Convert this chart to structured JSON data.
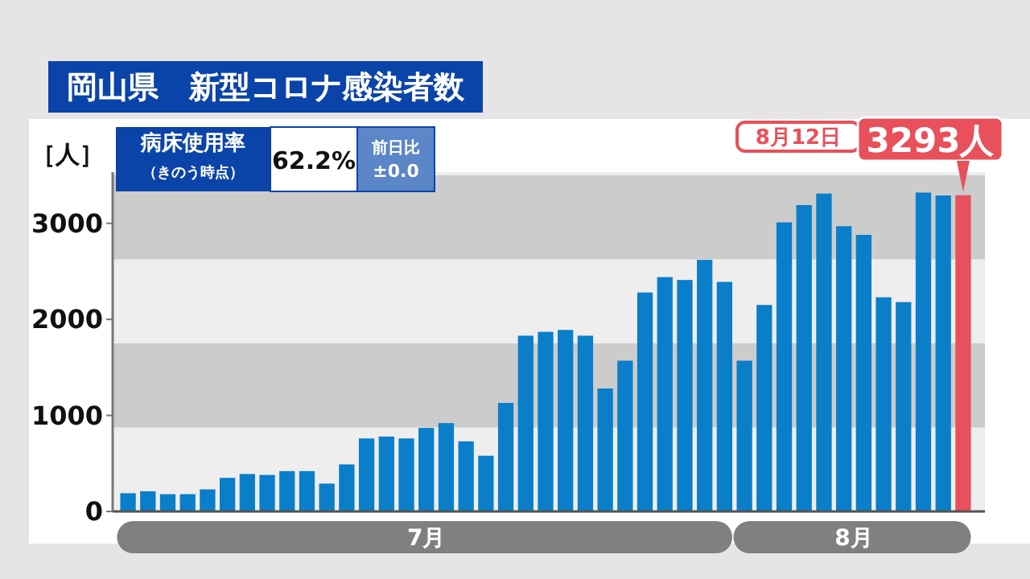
{
  "chart_data": {
    "type": "bar",
    "title": "岡山県　新型コロナ感染者数",
    "ylabel": "［人］",
    "categories": [
      null,
      null,
      null,
      null,
      null,
      null,
      null,
      null,
      null,
      null,
      null,
      null,
      null,
      null,
      null,
      null,
      null,
      null,
      null,
      null,
      null,
      null,
      null,
      null,
      null,
      null,
      null,
      null,
      null,
      null,
      null,
      null,
      null,
      null,
      null,
      null,
      null,
      null,
      null,
      null,
      null,
      null,
      null
    ],
    "values": [
      190,
      210,
      180,
      180,
      230,
      350,
      390,
      380,
      420,
      420,
      290,
      490,
      760,
      780,
      760,
      870,
      920,
      730,
      580,
      1130,
      1830,
      1870,
      1890,
      1830,
      1280,
      1570,
      2280,
      2440,
      2410,
      2620,
      2390,
      1570,
      2150,
      3010,
      3190,
      3310,
      2970,
      2880,
      2230,
      2180,
      3320,
      3290,
      3293
    ],
    "colors": [
      "#0a7ec8",
      "#0a7ec8",
      "#0a7ec8",
      "#0a7ec8",
      "#0a7ec8",
      "#0a7ec8",
      "#0a7ec8",
      "#0a7ec8",
      "#0a7ec8",
      "#0a7ec8",
      "#0a7ec8",
      "#0a7ec8",
      "#0a7ec8",
      "#0a7ec8",
      "#0a7ec8",
      "#0a7ec8",
      "#0a7ec8",
      "#0a7ec8",
      "#0a7ec8",
      "#0a7ec8",
      "#0a7ec8",
      "#0a7ec8",
      "#0a7ec8",
      "#0a7ec8",
      "#0a7ec8",
      "#0a7ec8",
      "#0a7ec8",
      "#0a7ec8",
      "#0a7ec8",
      "#0a7ec8",
      "#0a7ec8",
      "#0a7ec8",
      "#0a7ec8",
      "#0a7ec8",
      "#0a7ec8",
      "#0a7ec8",
      "#0a7ec8",
      "#0a7ec8",
      "#0a7ec8",
      "#0a7ec8",
      "#0a7ec8",
      "#0a7ec8",
      "#e8505b"
    ],
    "value_labels": [
      null,
      null,
      null,
      null,
      null,
      null,
      null,
      null,
      null,
      null,
      null,
      null,
      null,
      null,
      null,
      null,
      null,
      null,
      null,
      null,
      null,
      null,
      null,
      null,
      null,
      null,
      null,
      null,
      null,
      null,
      null,
      null,
      null,
      null,
      null,
      null,
      null,
      null,
      null,
      null,
      null,
      null,
      "3293人"
    ],
    "ylim": [
      0,
      3500
    ],
    "yticks": [
      0,
      1000,
      2000,
      3000
    ],
    "grid": false,
    "bands": [
      {
        "axis": "y",
        "from": 875,
        "to": 1750,
        "color": "#cccccc"
      },
      {
        "axis": "y",
        "from": 2625,
        "to": 3500,
        "color": "#cccccc"
      }
    ],
    "annotations": [
      "7月",
      "8月",
      "病床使用率",
      "（きのう時点）",
      "62.2%",
      "前日比",
      "±0.0",
      "8月12日"
    ]
  }
}
